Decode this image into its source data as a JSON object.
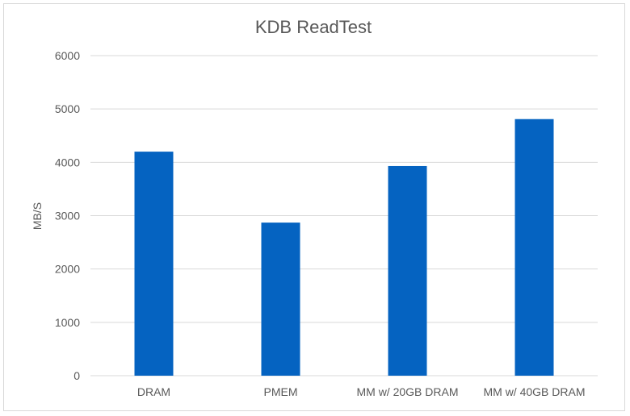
{
  "chart_data": {
    "type": "bar",
    "title": "KDB ReadTest",
    "xlabel": "",
    "ylabel": "MB/S",
    "categories": [
      "DRAM",
      "PMEM",
      "MM w/ 20GB DRAM",
      "MM w/ 40GB DRAM"
    ],
    "values": [
      4200,
      2870,
      3930,
      4810
    ],
    "ylim": [
      0,
      6000
    ],
    "yticks": [
      "0",
      "1000",
      "2000",
      "3000",
      "4000",
      "5000",
      "6000"
    ],
    "grid": true,
    "legend": "none",
    "bar_color": "#0563c1",
    "grid_color": "#d9d9d9"
  }
}
